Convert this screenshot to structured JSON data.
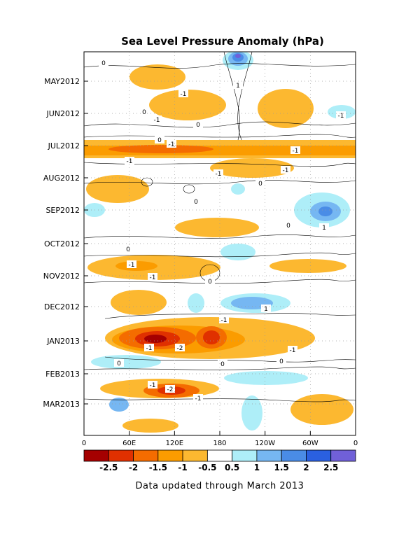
{
  "chart_data": {
    "type": "heatmap",
    "title": "Sea Level Pressure Anomaly (hPa)",
    "note": "Data updated through March 2013",
    "x_ticks": [
      "0",
      "60E",
      "120E",
      "180",
      "120W",
      "60W",
      "0"
    ],
    "x_tick_values": [
      0,
      60,
      120,
      180,
      240,
      300,
      360
    ],
    "y_ticks": [
      "MAY2012",
      "JUN2012",
      "JUL2012",
      "AUG2012",
      "SEP2012",
      "OCT2012",
      "NOV2012",
      "DEC2012",
      "JAN2013",
      "FEB2013",
      "MAR2013"
    ],
    "y_range": [
      "APR2012",
      "MAR2013"
    ],
    "grid": true,
    "colorbar": {
      "levels": [
        "-2.5",
        "-2",
        "-1.5",
        "-1",
        "-0.5",
        "0.5",
        "1",
        "1.5",
        "2",
        "2.5"
      ],
      "colors": [
        "#a50000",
        "#e03000",
        "#f46c00",
        "#fb9c00",
        "#fcb830",
        "#ffffff",
        "#aeeef8",
        "#76b7f2",
        "#4a8ce6",
        "#2a60e0",
        "#7060d8"
      ]
    },
    "features": [
      {
        "lon": 115,
        "month": "JAN2013",
        "value": -2.5
      },
      {
        "lon": 165,
        "month": "JAN2013",
        "value": -2.5
      },
      {
        "lon": 125,
        "month": "MAR2013",
        "value": -2
      },
      {
        "lon": 100,
        "month": "JUL2012",
        "value": -1.5
      },
      {
        "lon": 195,
        "month": "APR2012",
        "value": 2
      },
      {
        "lon": 315,
        "month": "SEP2012",
        "value": 1.5
      },
      {
        "lon": 230,
        "month": "DEC2012",
        "value": 1
      },
      {
        "lon": 75,
        "month": "NOV2012",
        "value": -1.5
      }
    ],
    "contour_labels": [
      "0",
      "-1",
      "1",
      "-2"
    ]
  }
}
